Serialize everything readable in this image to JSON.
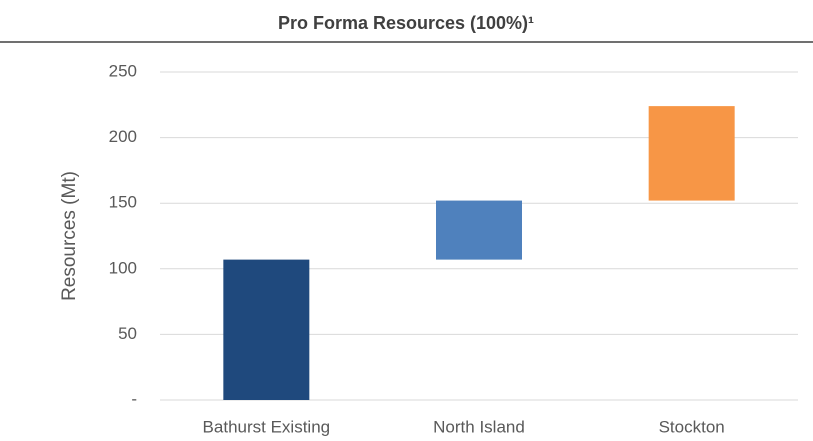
{
  "chart_data": {
    "type": "waterfall",
    "title": "Pro Forma Resources (100%)¹",
    "y_label": "Resources (Mt)",
    "categories": [
      "Bathurst Existing",
      "North Island",
      "Stockton"
    ],
    "values": [
      107,
      45,
      72
    ],
    "colors": [
      "#1f497d",
      "#4f81bd",
      "#f79646"
    ],
    "ylim": [
      0,
      250
    ],
    "yticks": [
      {
        "value": 0,
        "label": "-"
      },
      50,
      100,
      150,
      200,
      250
    ],
    "grid": true
  }
}
